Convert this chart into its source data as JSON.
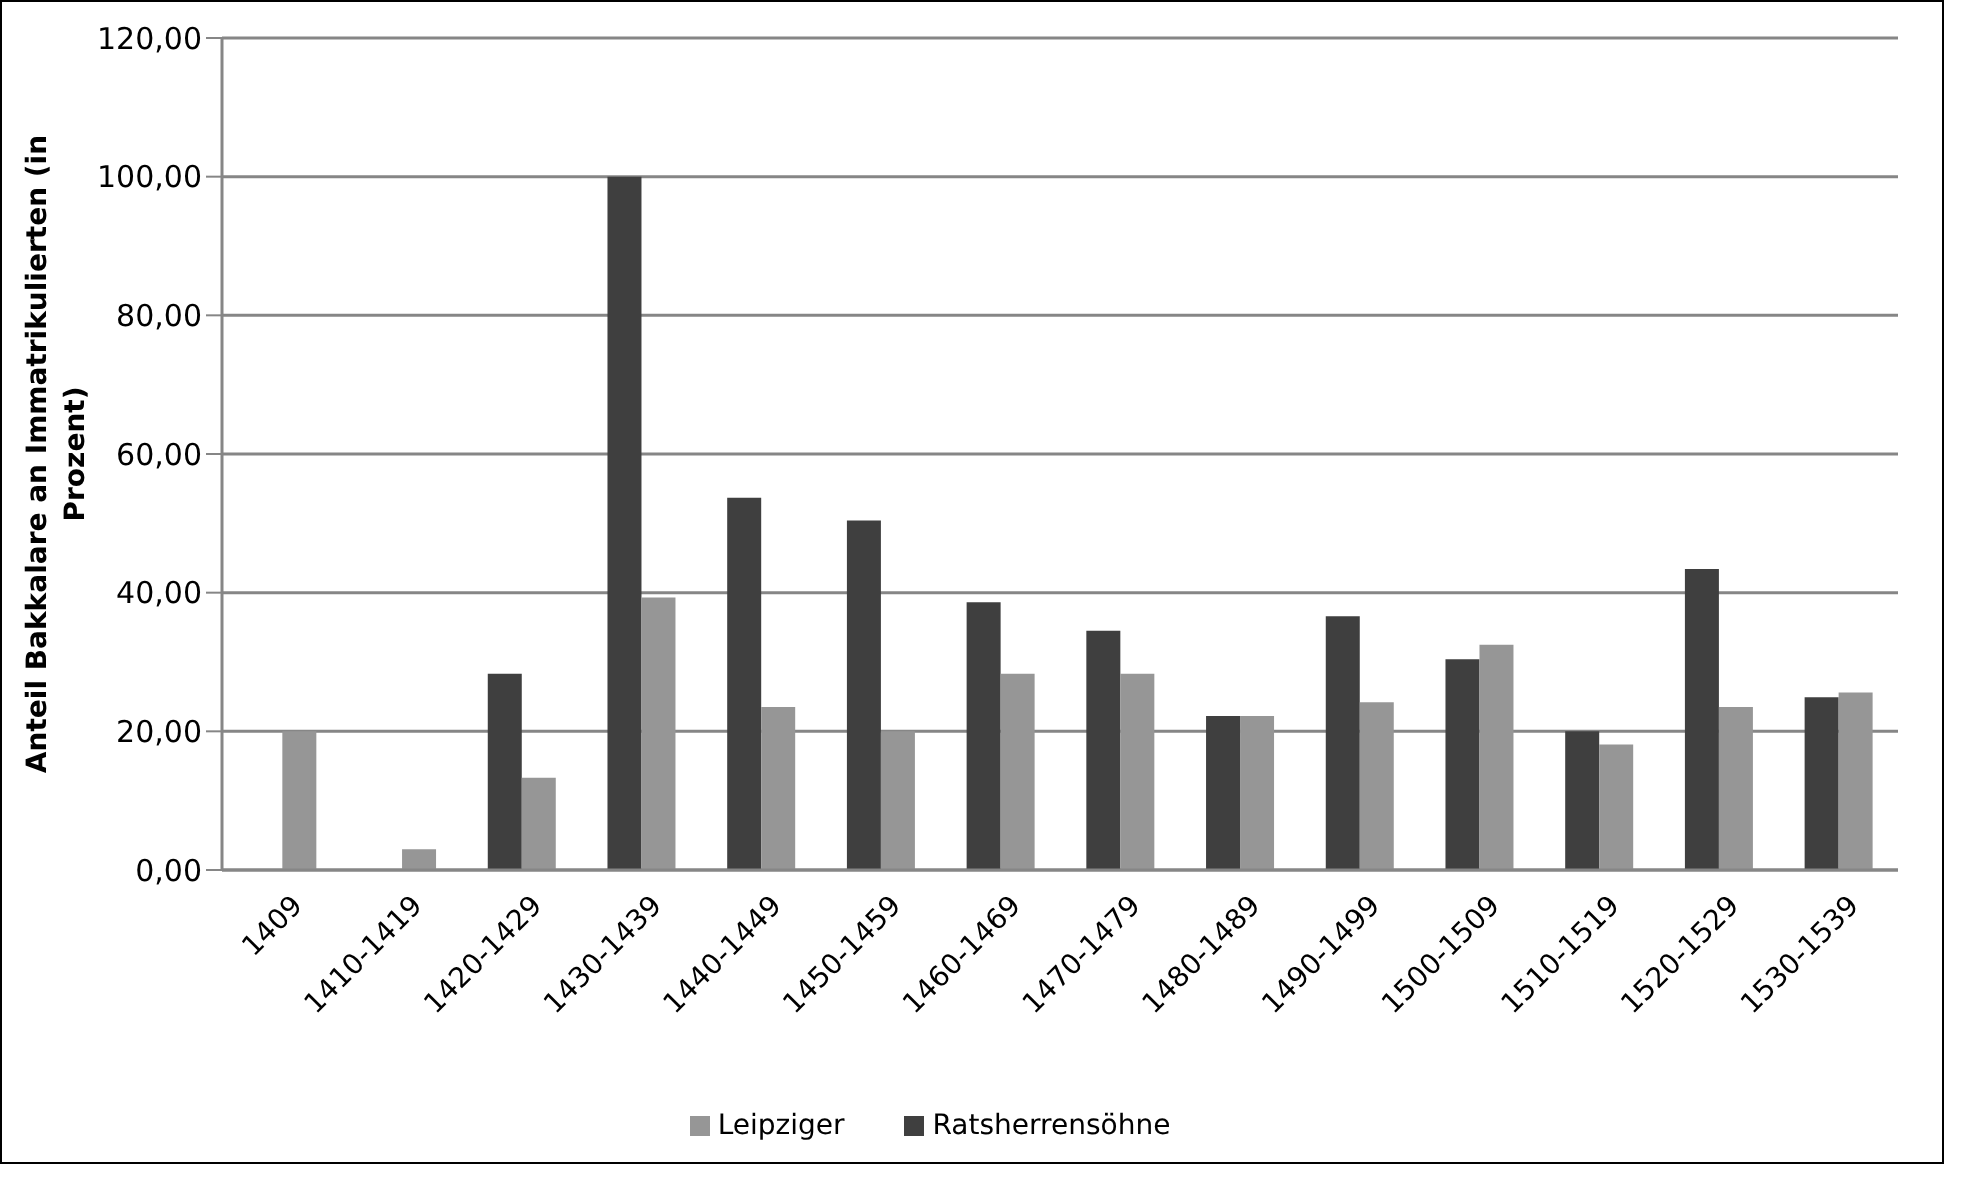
{
  "chart_data": {
    "type": "bar",
    "ylabel": "Anteil Bakkalare an Immatrikulierten (in Prozent)",
    "categories": [
      "1409",
      "1410-1419",
      "1420-1429",
      "1430-1439",
      "1440-1449",
      "1450-1459",
      "1460-1469",
      "1470-1479",
      "1480-1489",
      "1490-1499",
      "1500-1509",
      "1510-1519",
      "1520-1529",
      "1530-1539"
    ],
    "series": [
      {
        "name": "Ratsherrensöhne",
        "color": "#3f3f3f",
        "values": [
          null,
          null,
          28.3,
          100,
          53.7,
          50.4,
          38.6,
          34.5,
          22.2,
          36.6,
          30.4,
          20,
          43.4,
          24.9
        ]
      },
      {
        "name": "Leipziger",
        "color": "#969696",
        "values": [
          20,
          3,
          13.3,
          39.3,
          23.5,
          20,
          28.3,
          28.3,
          22.2,
          24.2,
          32.5,
          18.1,
          23.5,
          25.6
        ]
      }
    ],
    "ylim": [
      0,
      120
    ],
    "yticks": [
      {
        "value": 0,
        "label": "0,00"
      },
      {
        "value": 20,
        "label": "20,00"
      },
      {
        "value": 40,
        "label": "40,00"
      },
      {
        "value": 60,
        "label": "60,00"
      },
      {
        "value": 80,
        "label": "80,00"
      },
      {
        "value": 100,
        "label": "100,00"
      },
      {
        "value": 120,
        "label": "120,00"
      }
    ],
    "grid": "y",
    "legend": "bottom"
  }
}
